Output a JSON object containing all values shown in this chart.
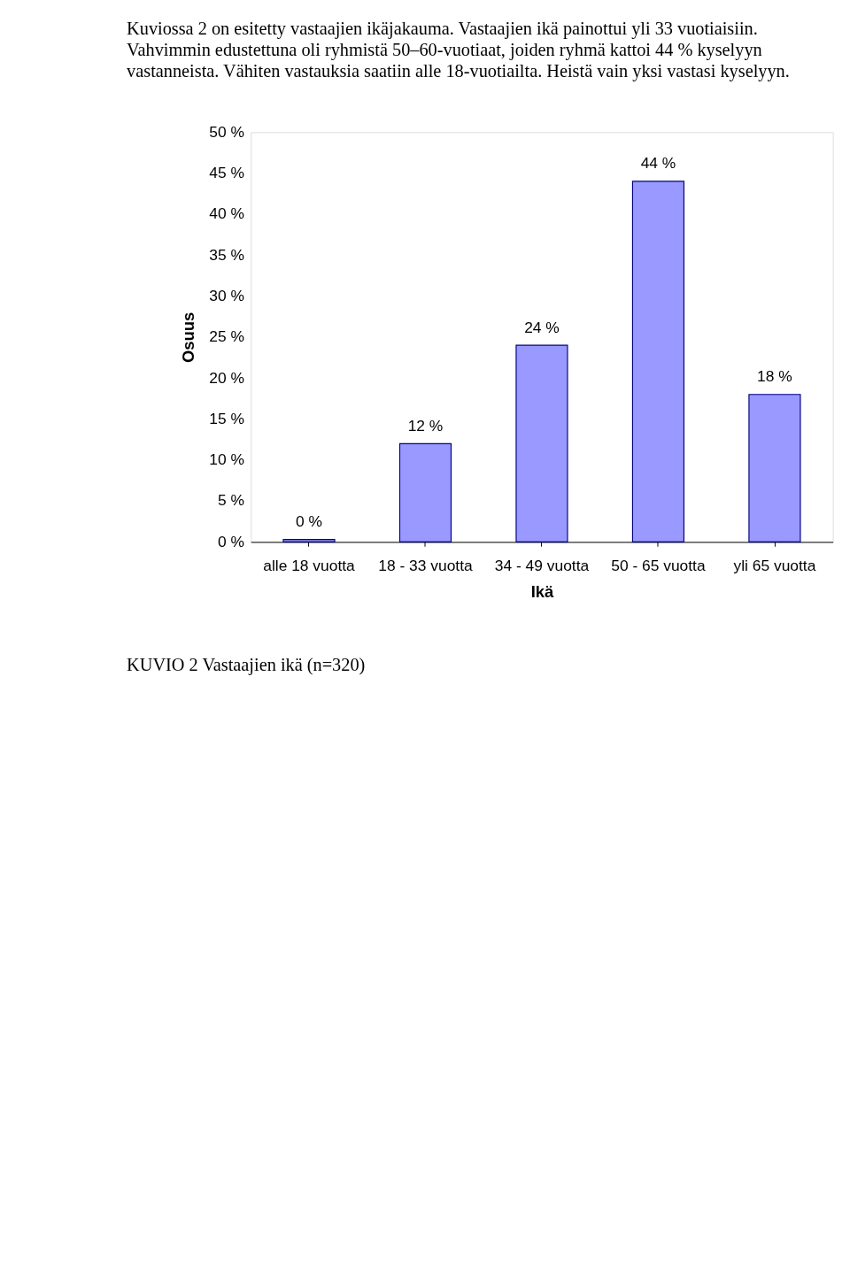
{
  "chart_data": {
    "type": "bar",
    "categories": [
      "alle 18 vuotta",
      "18 - 33 vuotta",
      "34 - 49 vuotta",
      "50 - 65 vuotta",
      "yli 65 vuotta"
    ],
    "values": [
      0.3,
      12,
      24,
      44,
      18
    ],
    "value_labels": [
      "0 %",
      "12 %",
      "24 %",
      "44 %",
      "18 %"
    ],
    "color": "#9999ff",
    "xlabel": "Ikä",
    "ylabel": "Osuus",
    "ylim": [
      0,
      50
    ],
    "yticks": [
      {
        "value": 0,
        "label": "0 %"
      },
      {
        "value": 5,
        "label": "5 %"
      },
      {
        "value": 10,
        "label": "10 %"
      },
      {
        "value": 15,
        "label": "15 %"
      },
      {
        "value": 20,
        "label": "20 %"
      },
      {
        "value": 25,
        "label": "25 %"
      },
      {
        "value": 30,
        "label": "30 %"
      },
      {
        "value": 35,
        "label": "35 %"
      },
      {
        "value": 40,
        "label": "40 %"
      },
      {
        "value": 45,
        "label": "45 %"
      },
      {
        "value": 50,
        "label": "50 %"
      }
    ],
    "grid": false,
    "annotations": [
      "Kuviossa 2 on esitetty vastaajien ikäjakauma. Vastaajien ikä painottui yli 33 vuotiaisiin.",
      "Vahvimmin edustettuna oli ryhmistä 50–60-vuotiaat, joiden ryhmä kattoi 44 % kyselyyn",
      "vastanneista. Vähiten vastauksia saatiin alle 18-vuotiailta. Heistä vain yksi vastasi kyselyyn.",
      "KUVIO 2 Vastaajien ikä (n=320)"
    ]
  }
}
